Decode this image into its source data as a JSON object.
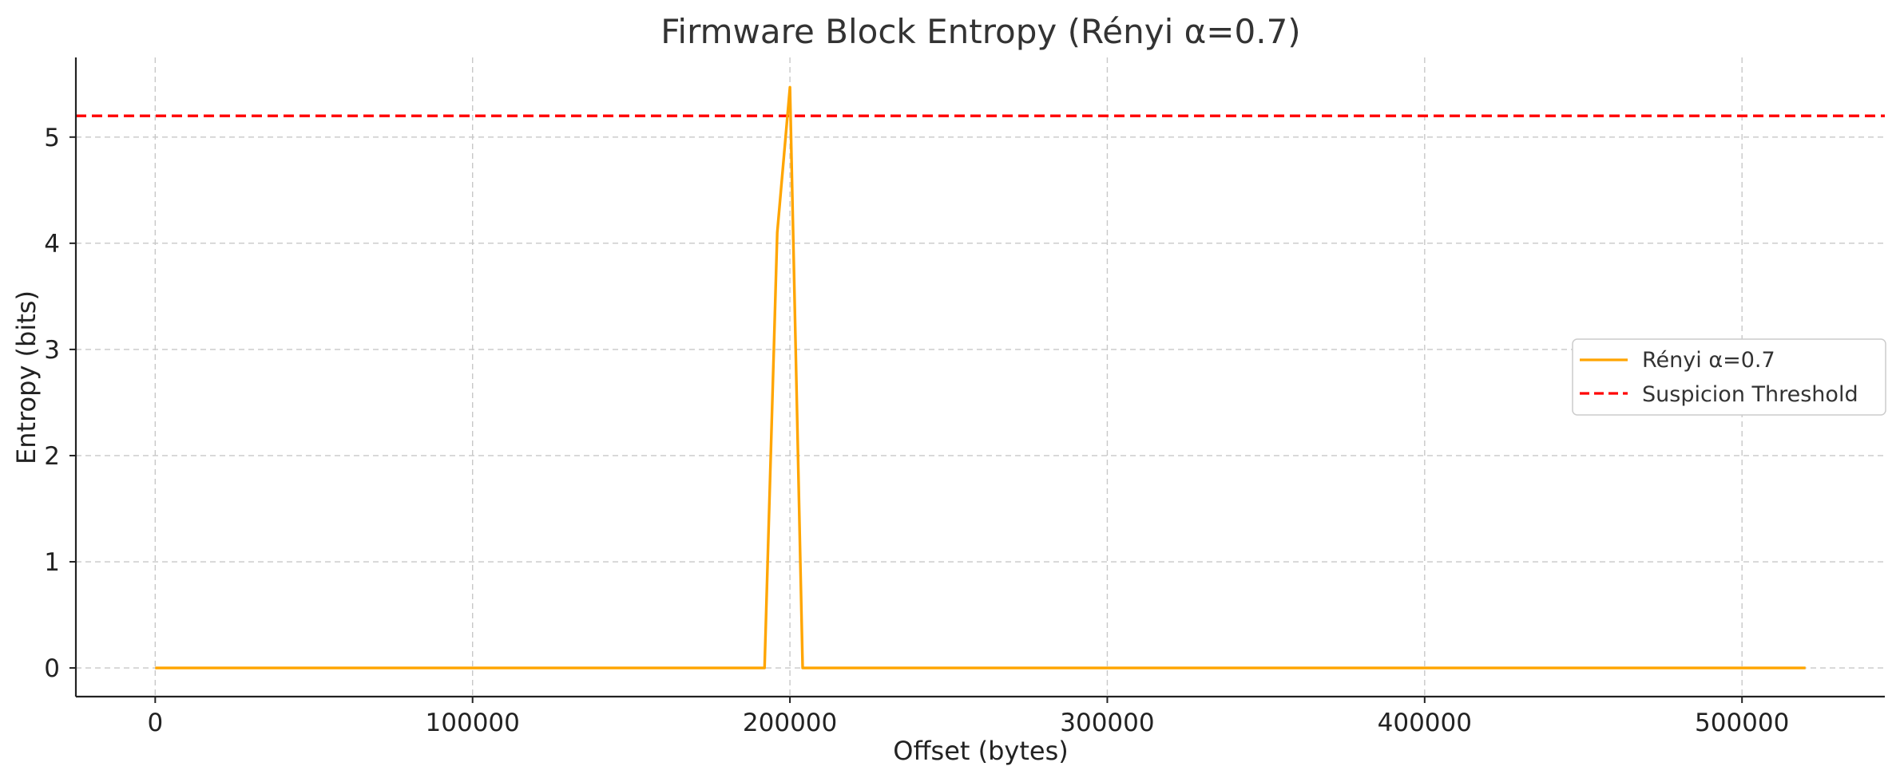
{
  "chart_data": {
    "type": "line",
    "title": "Firmware Block Entropy (Rényi α=0.7)",
    "xlabel": "Offset (bytes)",
    "ylabel": "Entropy (bits)",
    "xlim": [
      -25000,
      545000
    ],
    "ylim": [
      -0.27,
      5.75
    ],
    "xticks": [
      0,
      100000,
      200000,
      300000,
      400000,
      500000
    ],
    "yticks": [
      0,
      1,
      2,
      3,
      4,
      5
    ],
    "grid": true,
    "legend_position": "center-right",
    "series": [
      {
        "name": "Rényi α=0.7",
        "color": "#ffa500",
        "style": "solid",
        "x": [
          0,
          192000,
          196000,
          200000,
          204000,
          520000
        ],
        "y": [
          0,
          0,
          4.1,
          5.47,
          0,
          0
        ]
      }
    ],
    "threshold": {
      "name": "Suspicion Threshold",
      "value": 5.2,
      "color": "#ff0000",
      "style": "dashed"
    }
  }
}
